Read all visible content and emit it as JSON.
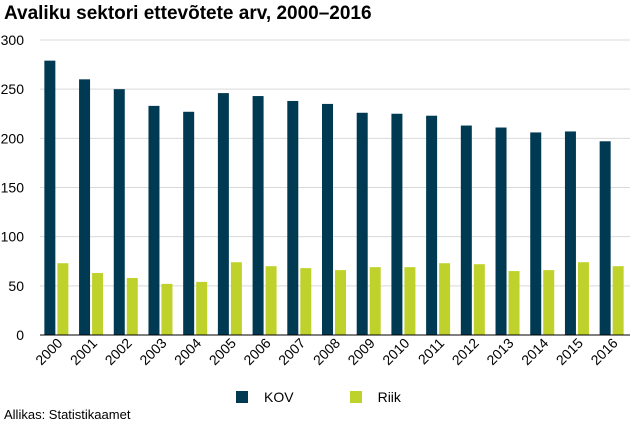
{
  "chart_data": {
    "type": "bar",
    "title": "Avaliku sektori ettevõtete arv, 2000–2016",
    "categories": [
      "2000",
      "2001",
      "2002",
      "2003",
      "2004",
      "2005",
      "2006",
      "2007",
      "2008",
      "2009",
      "2010",
      "2011",
      "2012",
      "2013",
      "2014",
      "2015",
      "2016"
    ],
    "series": [
      {
        "name": "KOV",
        "color": "#003a52",
        "values": [
          279,
          260,
          250,
          233,
          227,
          246,
          243,
          238,
          235,
          226,
          225,
          223,
          213,
          211,
          206,
          207,
          197
        ]
      },
      {
        "name": "Riik",
        "color": "#bfd22b",
        "values": [
          73,
          63,
          58,
          52,
          54,
          74,
          70,
          68,
          66,
          69,
          69,
          73,
          72,
          65,
          66,
          74,
          70
        ]
      }
    ],
    "ylim": [
      0,
      300
    ],
    "yticks": [
      0,
      50,
      100,
      150,
      200,
      250,
      300
    ],
    "grid": true,
    "legend_position": "bottom"
  },
  "source_note": "Allikas: Statistikaamet"
}
